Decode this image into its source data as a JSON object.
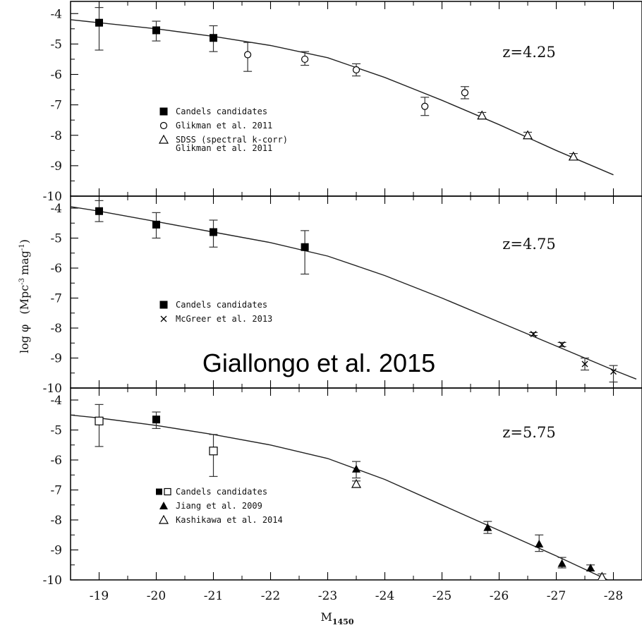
{
  "figure": {
    "xlabel": "M",
    "xlabel_sub": "1450",
    "ylabel": "log φ",
    "ylabel_units": "(Mpc",
    "ylabel_units_exp": "-3",
    "ylabel_units_tail": "mag",
    "ylabel_units_tail_exp": "-1",
    "ylabel_close": ")",
    "overlay_text": "Giallongo et al. 2015",
    "x_tick_labels": [
      "-19",
      "-20",
      "-21",
      "-22",
      "-23",
      "-24",
      "-25",
      "-26",
      "-27",
      "-28"
    ]
  },
  "chart_data": [
    {
      "type": "scatter",
      "panel_label": "z=4.25",
      "xlim": [
        -18.5,
        -28.5
      ],
      "ylim": [
        -10,
        -3.6
      ],
      "y_tick_labels": [
        "-4",
        "-5",
        "-6",
        "-7",
        "-8",
        "-9",
        "-10"
      ],
      "legend": [
        {
          "marker": "filled-square",
          "text": "Candels candidates"
        },
        {
          "marker": "open-circle",
          "text": "Glikman et al. 2011"
        },
        {
          "marker": "open-triangle",
          "text": "SDSS (spectral k-corr)",
          "text2": "Glikman et al. 2011"
        }
      ],
      "series": [
        {
          "marker": "filled-square",
          "points": [
            {
              "x": -19.0,
              "y": -4.3,
              "lo": -5.2,
              "hi": -3.8
            },
            {
              "x": -20.0,
              "y": -4.55,
              "lo": -4.9,
              "hi": -4.25
            },
            {
              "x": -21.0,
              "y": -4.8,
              "lo": -5.25,
              "hi": -4.4
            }
          ]
        },
        {
          "marker": "open-circle",
          "points": [
            {
              "x": -21.6,
              "y": -5.35,
              "lo": -5.9,
              "hi": -4.95
            },
            {
              "x": -22.6,
              "y": -5.5,
              "lo": -5.7,
              "hi": -5.25
            },
            {
              "x": -23.5,
              "y": -5.85,
              "lo": -6.05,
              "hi": -5.65
            },
            {
              "x": -24.7,
              "y": -7.05,
              "lo": -7.35,
              "hi": -6.75
            },
            {
              "x": -25.4,
              "y": -6.6,
              "lo": -6.8,
              "hi": -6.4
            }
          ]
        },
        {
          "marker": "open-triangle",
          "points": [
            {
              "x": -25.7,
              "y": -7.35,
              "lo": -7.45,
              "hi": -7.25
            },
            {
              "x": -26.5,
              "y": -8.0,
              "lo": -8.1,
              "hi": -7.9
            },
            {
              "x": -27.3,
              "y": -8.7,
              "lo": -8.8,
              "hi": -8.6
            }
          ]
        }
      ],
      "model_curve": {
        "x": [
          -18.5,
          -19,
          -20,
          -21,
          -22,
          -23,
          -24,
          -25,
          -26,
          -27,
          -28
        ],
        "y": [
          -4.2,
          -4.3,
          -4.5,
          -4.75,
          -5.05,
          -5.45,
          -6.1,
          -6.85,
          -7.65,
          -8.5,
          -9.3
        ]
      }
    },
    {
      "type": "scatter",
      "panel_label": "z=4.75",
      "xlim": [
        -18.5,
        -28.5
      ],
      "ylim": [
        -10,
        -3.6
      ],
      "y_tick_labels": [
        "-4",
        "-5",
        "-6",
        "-7",
        "-8",
        "-9",
        "-10"
      ],
      "legend": [
        {
          "marker": "filled-square",
          "text": "Candels candidates"
        },
        {
          "marker": "cross",
          "text": "McGreer et al. 2013"
        }
      ],
      "series": [
        {
          "marker": "filled-square",
          "points": [
            {
              "x": -19.0,
              "y": -4.1,
              "lo": -4.45,
              "hi": -3.75
            },
            {
              "x": -20.0,
              "y": -4.55,
              "lo": -5.0,
              "hi": -4.15
            },
            {
              "x": -21.0,
              "y": -4.8,
              "lo": -5.3,
              "hi": -4.4
            },
            {
              "x": -22.6,
              "y": -5.3,
              "lo": -6.2,
              "hi": -4.75
            }
          ]
        },
        {
          "marker": "cross",
          "points": [
            {
              "x": -26.6,
              "y": -8.2,
              "lo": -8.25,
              "hi": -8.15
            },
            {
              "x": -27.1,
              "y": -8.55,
              "lo": -8.62,
              "hi": -8.48
            },
            {
              "x": -27.5,
              "y": -9.2,
              "lo": -9.4,
              "hi": -9.0
            },
            {
              "x": -28.0,
              "y": -9.45,
              "lo": -9.8,
              "hi": -9.25
            }
          ]
        }
      ],
      "model_curve": {
        "x": [
          -18.5,
          -19,
          -20,
          -21,
          -22,
          -23,
          -24,
          -25,
          -26,
          -27,
          -28,
          -28.4
        ],
        "y": [
          -3.95,
          -4.1,
          -4.45,
          -4.8,
          -5.15,
          -5.6,
          -6.25,
          -7.0,
          -7.8,
          -8.6,
          -9.4,
          -9.7
        ]
      }
    },
    {
      "type": "scatter",
      "panel_label": "z=5.75",
      "xlim": [
        -18.5,
        -28.5
      ],
      "ylim": [
        -10,
        -3.6
      ],
      "y_tick_labels": [
        "-4",
        "-5",
        "-6",
        "-7",
        "-8",
        "-9",
        "-10"
      ],
      "legend": [
        {
          "marker": "filled-and-open-square",
          "text": "Candels candidates"
        },
        {
          "marker": "filled-triangle",
          "text": "Jiang et al. 2009"
        },
        {
          "marker": "open-triangle",
          "text": "Kashikawa et al. 2014"
        }
      ],
      "series": [
        {
          "marker": "open-square",
          "points": [
            {
              "x": -19.0,
              "y": -4.7,
              "lo": -5.55,
              "hi": -4.15
            },
            {
              "x": -21.0,
              "y": -5.7,
              "lo": -6.55,
              "hi": -5.15
            }
          ]
        },
        {
          "marker": "filled-square",
          "points": [
            {
              "x": -20.0,
              "y": -4.65,
              "lo": -4.95,
              "hi": -4.4
            }
          ]
        },
        {
          "marker": "filled-triangle",
          "points": [
            {
              "x": -23.5,
              "y": -6.3,
              "lo": -6.6,
              "hi": -6.05
            },
            {
              "x": -25.8,
              "y": -8.25,
              "lo": -8.45,
              "hi": -8.05
            },
            {
              "x": -26.7,
              "y": -8.8,
              "lo": -9.05,
              "hi": -8.5
            },
            {
              "x": -27.1,
              "y": -9.45,
              "lo": -9.6,
              "hi": -9.25
            },
            {
              "x": -27.6,
              "y": -9.6,
              "lo": -9.7,
              "hi": -9.5
            }
          ]
        },
        {
          "marker": "open-triangle",
          "points": [
            {
              "x": -23.5,
              "y": -6.8,
              "lo": -6.9,
              "hi": -6.7
            },
            {
              "x": -27.8,
              "y": -9.9,
              "lo": -10.0,
              "hi": -9.8
            }
          ]
        }
      ],
      "model_curve": {
        "x": [
          -18.5,
          -19,
          -20,
          -21,
          -22,
          -23,
          -24,
          -25,
          -26,
          -27,
          -27.9
        ],
        "y": [
          -4.5,
          -4.6,
          -4.85,
          -5.15,
          -5.5,
          -5.95,
          -6.65,
          -7.5,
          -8.35,
          -9.2,
          -10.0
        ]
      }
    }
  ]
}
